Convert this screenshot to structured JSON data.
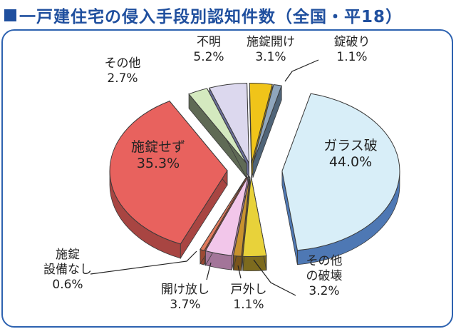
{
  "title": "一戸建住宅の侵入手段別認知件数（全国・平18）",
  "colors": {
    "title": "#1f4f9e",
    "frame": "#2d62b0"
  },
  "chart_data": {
    "type": "pie",
    "title": "一戸建住宅の侵入手段別認知件数（全国・平18）",
    "unit": "%",
    "slices": [
      {
        "label": "施錠開け",
        "value": 3.1,
        "value_label": "3.1%",
        "color": "#f0c419",
        "side": "#a8850d"
      },
      {
        "label": "錠破り",
        "value": 1.1,
        "value_label": "1.1%",
        "color": "#8fa6bd",
        "side": "#4f6478"
      },
      {
        "label": "ガラス破",
        "value": 44.0,
        "value_label": "44.0%",
        "color": "#d8eef8",
        "side": "#4e78b4"
      },
      {
        "label": "その他の破壊",
        "value": 3.2,
        "value_label": "3.2%",
        "color": "#e8d23a",
        "side": "#7d6b1e"
      },
      {
        "label": "戸外し",
        "value": 1.1,
        "value_label": "1.1%",
        "color": "#c8922e",
        "side": "#7a551c"
      },
      {
        "label": "開け放し",
        "value": 3.7,
        "value_label": "3.7%",
        "color": "#f2c6ea",
        "side": "#a37599"
      },
      {
        "label": "施錠設備なし",
        "value": 0.6,
        "value_label": "0.6%",
        "color": "#e07a5c",
        "side": "#9c4a33"
      },
      {
        "label": "施錠せず",
        "value": 35.3,
        "value_label": "35.3%",
        "color": "#e8625e",
        "side": "#a84542"
      },
      {
        "label": "その他",
        "value": 2.7,
        "value_label": "2.7%",
        "color": "#d4e9bf",
        "side": "#5f6a55"
      },
      {
        "label": "不明",
        "value": 5.2,
        "value_label": "5.2%",
        "color": "#dcd8ee",
        "side": "#6b6f9a"
      }
    ],
    "label_lines": {
      "施錠開け": [
        "施錠開け",
        "3.1%"
      ],
      "錠破り": [
        "錠破り",
        "1.1%"
      ],
      "ガラス破": [
        "ガラス破",
        "44.0%"
      ],
      "その他の破壊": [
        "その他",
        "の破壊",
        "3.2%"
      ],
      "戸外し": [
        "戸外し",
        "1.1%"
      ],
      "開け放し": [
        "開け放し",
        "3.7%"
      ],
      "施錠設備なし": [
        "施錠",
        "設備なし",
        "0.6%"
      ],
      "施錠せず": [
        "施錠せず",
        "35.3%"
      ],
      "その他": [
        "その他",
        "2.7%"
      ],
      "不明": [
        "不明",
        "5.2%"
      ]
    }
  }
}
